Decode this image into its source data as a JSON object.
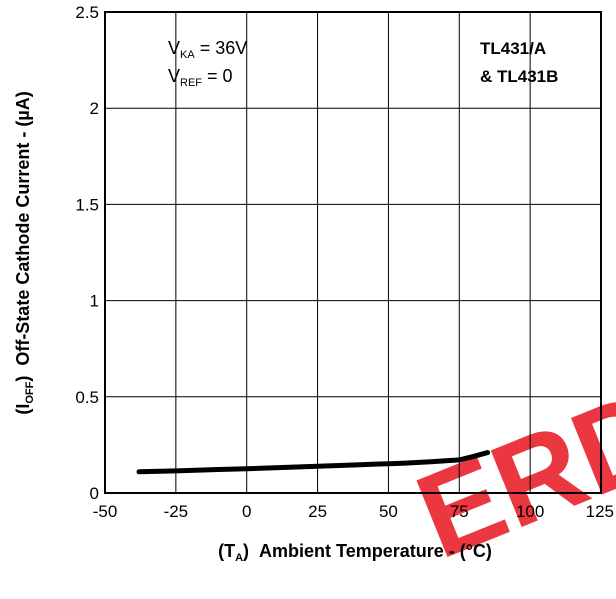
{
  "chart_data": {
    "type": "line",
    "x": [
      -38,
      -25,
      -10,
      0,
      10,
      25,
      40,
      55,
      65,
      75,
      80,
      85
    ],
    "series": [
      {
        "values": [
          0.11,
          0.115,
          0.122,
          0.126,
          0.131,
          0.139,
          0.147,
          0.155,
          0.162,
          0.172,
          0.19,
          0.21
        ]
      }
    ],
    "xlim": [
      -50,
      125
    ],
    "ylim": [
      0,
      2.5
    ],
    "xticks": [
      "-50",
      "-25",
      "0",
      "25",
      "50",
      "75",
      "100",
      "125"
    ],
    "yticks": [
      "0",
      "0.5",
      "1",
      "1.5",
      "2",
      "2.5"
    ],
    "grid": true,
    "xlabel": {
      "paren_open": "(T",
      "sub": "A",
      "paren_close": ")",
      "text": "Ambient Temperature - (°C)"
    },
    "ylabel": {
      "paren_open": "(I",
      "sub": "OFF",
      "paren_close": ")",
      "text": "Off-State Cathode Current - (µA)"
    },
    "conditions": [
      {
        "main": "V",
        "sub": "KA",
        "rest": " = 36V"
      },
      {
        "main": "V",
        "sub": "REF",
        "rest": " = 0"
      }
    ],
    "device_labels": [
      "TL431/A",
      "& TL431B"
    ],
    "line_color": "#000000"
  },
  "watermark": {
    "text": "ERD",
    "color": "#e8222c"
  }
}
